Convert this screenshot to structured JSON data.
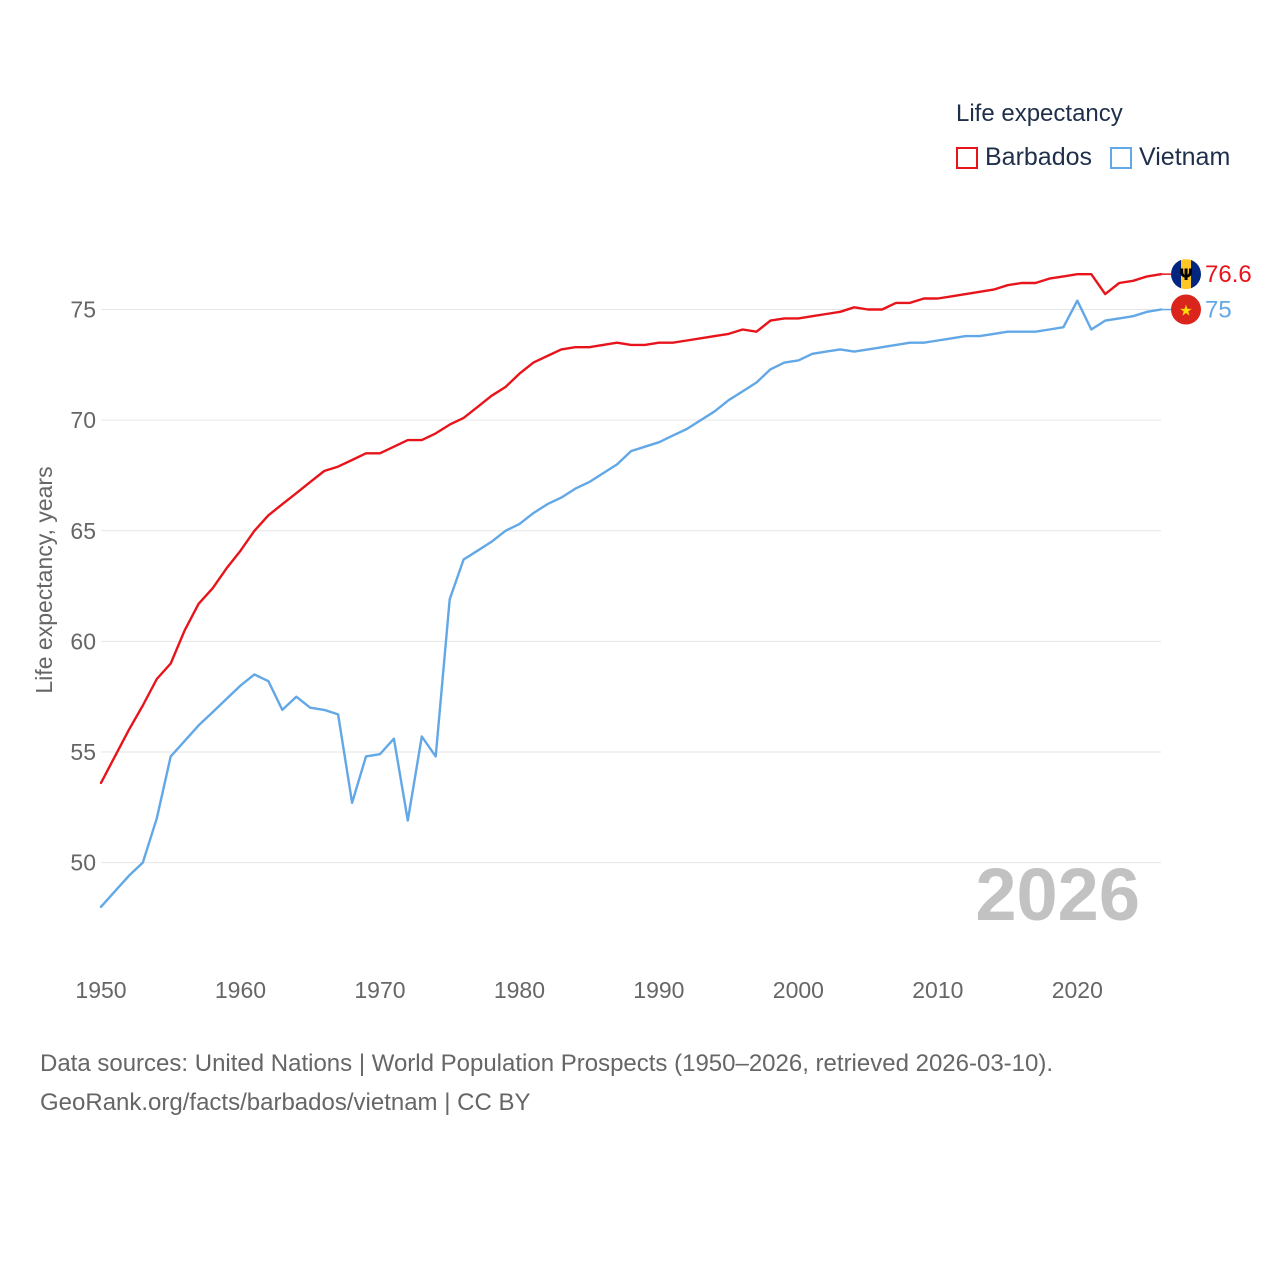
{
  "chart_data": {
    "type": "line",
    "title": "Life expectancy",
    "ylabel": "Life expectancy, years",
    "xlabel": "",
    "xlim": [
      1950,
      2026
    ],
    "ylim": [
      46.5,
      79.5
    ],
    "xticks": [
      1950,
      1960,
      1970,
      1980,
      1990,
      2000,
      2010,
      2020
    ],
    "yticks": [
      50,
      55,
      60,
      65,
      70,
      75
    ],
    "year_label": "2026",
    "x": [
      1950,
      1951,
      1952,
      1953,
      1954,
      1955,
      1956,
      1957,
      1958,
      1959,
      1960,
      1961,
      1962,
      1963,
      1964,
      1965,
      1966,
      1967,
      1968,
      1969,
      1970,
      1971,
      1972,
      1973,
      1974,
      1975,
      1976,
      1977,
      1978,
      1979,
      1980,
      1981,
      1982,
      1983,
      1984,
      1985,
      1986,
      1987,
      1988,
      1989,
      1990,
      1991,
      1992,
      1993,
      1994,
      1995,
      1996,
      1997,
      1998,
      1999,
      2000,
      2001,
      2002,
      2003,
      2004,
      2005,
      2006,
      2007,
      2008,
      2009,
      2010,
      2011,
      2012,
      2013,
      2014,
      2015,
      2016,
      2017,
      2018,
      2019,
      2020,
      2021,
      2022,
      2023,
      2024,
      2025,
      2026
    ],
    "series": [
      {
        "name": "Barbados",
        "color": "#e8141b",
        "end_label": "76.6",
        "values": [
          53.6,
          54.8,
          56.0,
          57.1,
          58.3,
          59.0,
          60.5,
          61.7,
          62.4,
          63.3,
          64.1,
          65.0,
          65.7,
          66.2,
          66.7,
          67.2,
          67.7,
          67.9,
          68.2,
          68.5,
          68.5,
          68.8,
          69.1,
          69.1,
          69.4,
          69.8,
          70.1,
          70.6,
          71.1,
          71.5,
          72.1,
          72.6,
          72.9,
          73.2,
          73.3,
          73.3,
          73.4,
          73.5,
          73.4,
          73.4,
          73.5,
          73.5,
          73.6,
          73.7,
          73.8,
          73.9,
          74.1,
          74.0,
          74.5,
          74.6,
          74.6,
          74.7,
          74.8,
          74.9,
          75.1,
          75.0,
          75.0,
          75.3,
          75.3,
          75.5,
          75.5,
          75.6,
          75.7,
          75.8,
          75.9,
          76.1,
          76.2,
          76.2,
          76.4,
          76.5,
          76.6,
          76.6,
          75.7,
          76.2,
          76.3,
          76.5,
          76.6
        ]
      },
      {
        "name": "Vietnam",
        "color": "#62a7e6",
        "end_label": "75",
        "values": [
          48.0,
          48.7,
          49.4,
          50.0,
          52.0,
          54.8,
          55.5,
          56.2,
          56.8,
          57.4,
          58.0,
          58.5,
          58.2,
          56.9,
          57.5,
          57.0,
          56.9,
          56.7,
          52.7,
          54.8,
          54.9,
          55.6,
          51.9,
          55.7,
          54.8,
          61.9,
          63.7,
          64.1,
          64.5,
          65.0,
          65.3,
          65.8,
          66.2,
          66.5,
          66.9,
          67.2,
          67.6,
          68.0,
          68.6,
          68.8,
          69.0,
          69.3,
          69.6,
          70.0,
          70.4,
          70.9,
          71.3,
          71.7,
          72.3,
          72.6,
          72.7,
          73.0,
          73.1,
          73.2,
          73.1,
          73.2,
          73.3,
          73.4,
          73.5,
          73.5,
          73.6,
          73.7,
          73.8,
          73.8,
          73.9,
          74.0,
          74.0,
          74.0,
          74.1,
          74.2,
          75.4,
          74.1,
          74.5,
          74.6,
          74.7,
          74.9,
          75.0
        ]
      }
    ]
  },
  "legend": {
    "title": "Life expectancy",
    "items": [
      "Barbados",
      "Vietnam"
    ]
  },
  "footer": {
    "line1": "Data sources: United Nations | World Population Prospects (1950–2026, retrieved 2026-03-10).",
    "line2": "GeoRank.org/facts/barbados/vietnam | CC BY"
  },
  "colors": {
    "barbados": "#e8141b",
    "vietnam": "#62a7e6",
    "grid": "#e6e6e6",
    "axis_text": "#666666",
    "year_watermark": "#c2c2c2"
  }
}
